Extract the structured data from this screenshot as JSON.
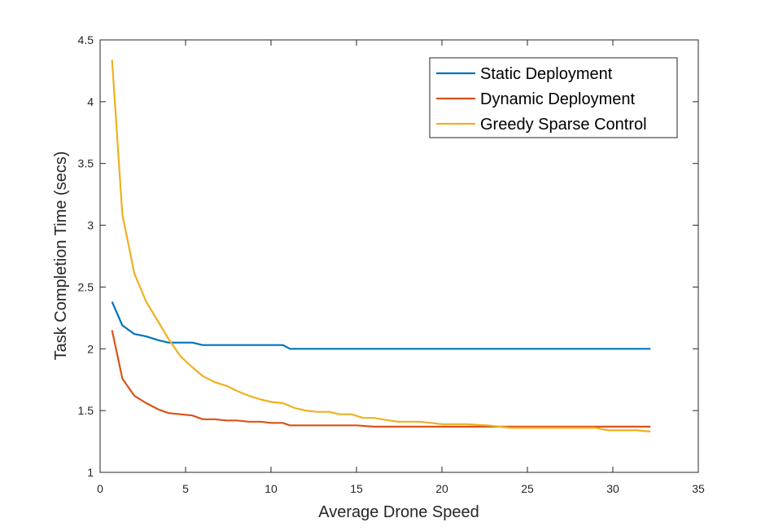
{
  "chart_data": {
    "type": "line",
    "title": "",
    "xlabel": "Average Drone Speed",
    "ylabel": "Task Completion Time (secs)",
    "xlim": [
      0,
      35
    ],
    "ylim": [
      1,
      4.5
    ],
    "xticks": [
      0,
      5,
      10,
      15,
      20,
      25,
      30,
      35
    ],
    "yticks": [
      1,
      1.5,
      2,
      2.5,
      3,
      3.5,
      4,
      4.5
    ],
    "xtick_labels": [
      "0",
      "5",
      "10",
      "15",
      "20",
      "25",
      "30",
      "35"
    ],
    "ytick_labels": [
      "1",
      "1.5",
      "2",
      "2.5",
      "3",
      "3.5",
      "4",
      "4.5"
    ],
    "grid": false,
    "legend_position": "top-right",
    "series": [
      {
        "name": "Static Deployment",
        "color": "#0072BD",
        "x": [
          0.7,
          1.3,
          2.0,
          2.7,
          3.4,
          4.0,
          4.7,
          5.4,
          6.0,
          6.7,
          7.4,
          8.0,
          8.7,
          9.4,
          10.0,
          10.7,
          11.1,
          12.0,
          14.0,
          16.0,
          18.0,
          20.0,
          22.0,
          24.0,
          26.0,
          28.0,
          30.0,
          32.2
        ],
        "y": [
          2.38,
          2.19,
          2.12,
          2.1,
          2.07,
          2.05,
          2.05,
          2.05,
          2.03,
          2.03,
          2.03,
          2.03,
          2.03,
          2.03,
          2.03,
          2.03,
          2.0,
          2.0,
          2.0,
          2.0,
          2.0,
          2.0,
          2.0,
          2.0,
          2.0,
          2.0,
          2.0,
          2.0
        ]
      },
      {
        "name": "Dynamic Deployment",
        "color": "#D95319",
        "x": [
          0.7,
          1.3,
          2.0,
          2.7,
          3.4,
          4.0,
          4.7,
          5.4,
          6.0,
          6.7,
          7.4,
          8.0,
          8.7,
          9.4,
          10.0,
          10.7,
          11.1,
          12.0,
          13.0,
          14.0,
          15.0,
          16.0,
          18.0,
          20.0,
          22.0,
          24.0,
          26.0,
          28.0,
          30.0,
          32.2
        ],
        "y": [
          2.15,
          1.76,
          1.62,
          1.56,
          1.51,
          1.48,
          1.47,
          1.46,
          1.43,
          1.43,
          1.42,
          1.42,
          1.41,
          1.41,
          1.4,
          1.4,
          1.38,
          1.38,
          1.38,
          1.38,
          1.38,
          1.37,
          1.37,
          1.37,
          1.37,
          1.37,
          1.37,
          1.37,
          1.37,
          1.37
        ]
      },
      {
        "name": "Greedy Sparse Control",
        "color": "#EDB120",
        "x": [
          0.7,
          1.3,
          2.0,
          2.7,
          3.4,
          4.0,
          4.7,
          5.4,
          6.0,
          6.7,
          7.4,
          8.0,
          8.7,
          9.4,
          10.0,
          10.7,
          11.4,
          12.0,
          12.7,
          13.4,
          14.0,
          14.7,
          15.4,
          16.0,
          17.4,
          18.7,
          20.0,
          21.4,
          22.7,
          24.0,
          25.4,
          26.7,
          28.0,
          29.0,
          29.7,
          30.4,
          31.4,
          32.2
        ],
        "y": [
          4.34,
          3.09,
          2.61,
          2.38,
          2.22,
          2.08,
          1.94,
          1.85,
          1.78,
          1.73,
          1.7,
          1.66,
          1.62,
          1.59,
          1.57,
          1.56,
          1.52,
          1.5,
          1.49,
          1.49,
          1.47,
          1.47,
          1.44,
          1.44,
          1.41,
          1.41,
          1.39,
          1.39,
          1.38,
          1.36,
          1.36,
          1.36,
          1.36,
          1.36,
          1.34,
          1.34,
          1.34,
          1.33
        ]
      }
    ]
  }
}
